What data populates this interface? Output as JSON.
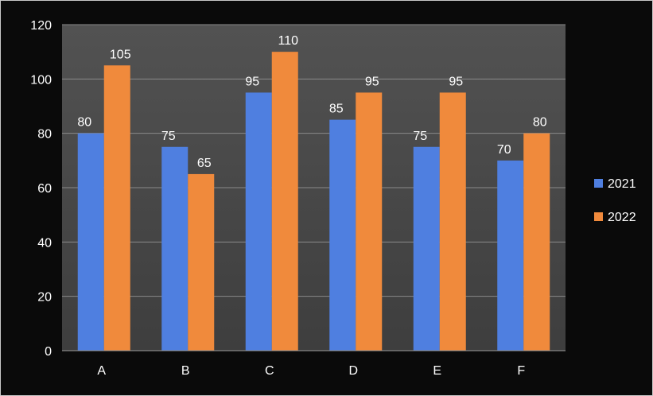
{
  "chart_data": {
    "type": "bar",
    "categories": [
      "A",
      "B",
      "C",
      "D",
      "E",
      "F"
    ],
    "series": [
      {
        "name": "2021",
        "values": [
          80,
          75,
          95,
          85,
          75,
          70
        ],
        "color": "#4f7fe0"
      },
      {
        "name": "2022",
        "values": [
          105,
          65,
          110,
          95,
          95,
          80
        ],
        "color": "#f08a3c"
      }
    ],
    "ylim": [
      0,
      120
    ],
    "yticks": [
      0,
      20,
      40,
      60,
      80,
      100,
      120
    ],
    "grid": true,
    "legend_position": "right",
    "title": "",
    "xlabel": "",
    "ylabel": "",
    "plot_background": "#4a4a4a",
    "gridline_color": "#8a8a8a"
  }
}
